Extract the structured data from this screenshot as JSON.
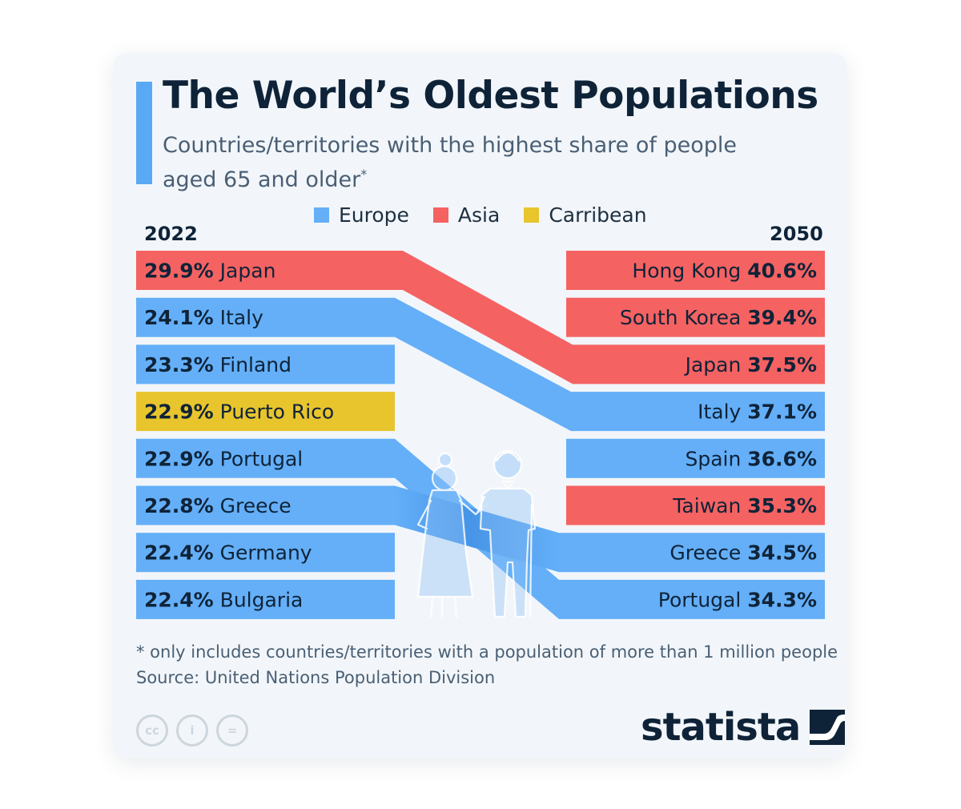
{
  "header": {
    "title": "The World’s Oldest Populations",
    "subtitle": "Countries/territories with the highest share of people aged 65 and older",
    "subtitle_mark": "*"
  },
  "legend": [
    {
      "label": "Europe",
      "color": "#64aff8"
    },
    {
      "label": "Asia",
      "color": "#f56262"
    },
    {
      "label": "Carribean",
      "color": "#e8c42d"
    }
  ],
  "colors": {
    "Europe": "#64aff8",
    "Asia": "#f56262",
    "Carribean": "#e8c42d",
    "text": "#0f2338"
  },
  "chart_data": {
    "type": "table",
    "left_year": "2022",
    "right_year": "2050",
    "left": [
      {
        "country": "Japan",
        "value": 29.9,
        "label": "29.9%",
        "region": "Asia"
      },
      {
        "country": "Italy",
        "value": 24.1,
        "label": "24.1%",
        "region": "Europe"
      },
      {
        "country": "Finland",
        "value": 23.3,
        "label": "23.3%",
        "region": "Europe"
      },
      {
        "country": "Puerto Rico",
        "value": 22.9,
        "label": "22.9%",
        "region": "Carribean"
      },
      {
        "country": "Portugal",
        "value": 22.9,
        "label": "22.9%",
        "region": "Europe"
      },
      {
        "country": "Greece",
        "value": 22.8,
        "label": "22.8%",
        "region": "Europe"
      },
      {
        "country": "Germany",
        "value": 22.4,
        "label": "22.4%",
        "region": "Europe"
      },
      {
        "country": "Bulgaria",
        "value": 22.4,
        "label": "22.4%",
        "region": "Europe"
      }
    ],
    "right": [
      {
        "country": "Hong Kong",
        "value": 40.6,
        "label": "40.6%",
        "region": "Asia"
      },
      {
        "country": "South Korea",
        "value": 39.4,
        "label": "39.4%",
        "region": "Asia"
      },
      {
        "country": "Japan",
        "value": 37.5,
        "label": "37.5%",
        "region": "Asia"
      },
      {
        "country": "Italy",
        "value": 37.1,
        "label": "37.1%",
        "region": "Europe"
      },
      {
        "country": "Spain",
        "value": 36.6,
        "label": "36.6%",
        "region": "Europe"
      },
      {
        "country": "Taiwan",
        "value": 35.3,
        "label": "35.3%",
        "region": "Asia"
      },
      {
        "country": "Greece",
        "value": 34.5,
        "label": "34.5%",
        "region": "Europe"
      },
      {
        "country": "Portugal",
        "value": 34.3,
        "label": "34.3%",
        "region": "Europe"
      }
    ]
  },
  "footer": {
    "footnote": "* only includes countries/territories with a population of more than 1 million people",
    "source": "Source: United Nations Population Division",
    "license_icons": [
      "creative-commons-icon",
      "attribution-icon",
      "no-derivatives-icon"
    ],
    "license_glyphs": [
      "cc",
      "i",
      "="
    ],
    "brand": "statista"
  }
}
